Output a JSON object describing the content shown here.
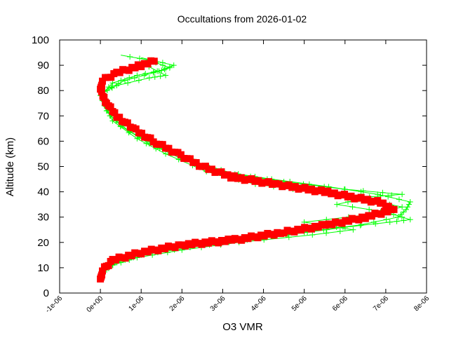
{
  "chart_data": {
    "type": "line",
    "title": "Occultations from 2026-01-02",
    "xlabel": "O3 VMR",
    "ylabel": "Altitude (km)",
    "xlim": [
      -1e-06,
      8e-06
    ],
    "ylim": [
      0,
      100
    ],
    "x_ticks": [
      "-1e-06",
      "0e+00",
      "1e-06",
      "2e-06",
      "3e-06",
      "4e-06",
      "5e-06",
      "6e-06",
      "7e-06",
      "8e-06"
    ],
    "y_ticks": [
      "0",
      "10",
      "20",
      "30",
      "40",
      "50",
      "60",
      "70",
      "80",
      "90",
      "100"
    ],
    "grid": false,
    "legend": "none",
    "colors": {
      "primary": "#ff0000",
      "secondary": "#00ff00"
    },
    "series": [
      {
        "color": "#00ff00",
        "marker": "plus",
        "points": [
          [
            5e-08,
            8
          ],
          [
            2e-07,
            11
          ],
          [
            6e-07,
            14
          ],
          [
            1.5e-06,
            17
          ],
          [
            3e-06,
            20
          ],
          [
            4.6e-06,
            23
          ],
          [
            6e-06,
            26
          ],
          [
            7.1e-06,
            28
          ],
          [
            7.6e-06,
            29
          ],
          [
            7e-06,
            32
          ],
          [
            5.8e-06,
            35
          ],
          [
            6.6e-06,
            38
          ],
          [
            7.4e-06,
            39
          ],
          [
            6e-06,
            41
          ],
          [
            4.5e-06,
            44
          ],
          [
            3.3e-06,
            47
          ],
          [
            2.3e-06,
            52
          ],
          [
            1.4e-06,
            58
          ],
          [
            7e-07,
            64
          ],
          [
            2.5e-07,
            70
          ],
          [
            5e-08,
            76
          ],
          [
            1e-07,
            80
          ],
          [
            6e-07,
            84
          ],
          [
            1.3e-06,
            87
          ],
          [
            1.7e-06,
            89
          ],
          [
            1.2e-06,
            92
          ],
          [
            5e-07,
            94
          ]
        ]
      },
      {
        "color": "#00ff00",
        "marker": "plus",
        "points": [
          [
            1e-07,
            9
          ],
          [
            4e-07,
            12
          ],
          [
            1e-06,
            15
          ],
          [
            2.2e-06,
            18
          ],
          [
            3.6e-06,
            21
          ],
          [
            5e-06,
            24
          ],
          [
            6.4e-06,
            27
          ],
          [
            7.3e-06,
            30
          ],
          [
            7.5e-06,
            33
          ],
          [
            7.6e-06,
            36
          ],
          [
            6.8e-06,
            39
          ],
          [
            5.6e-06,
            42
          ],
          [
            4.2e-06,
            45
          ],
          [
            3e-06,
            48
          ],
          [
            2e-06,
            53
          ],
          [
            1.2e-06,
            59
          ],
          [
            5e-07,
            66
          ],
          [
            1.5e-07,
            72
          ],
          [
            0.0,
            78
          ],
          [
            3e-07,
            83
          ],
          [
            9e-07,
            86
          ],
          [
            1.5e-06,
            88
          ],
          [
            1.8e-06,
            90
          ],
          [
            1e-06,
            93
          ]
        ]
      },
      {
        "color": "#00ff00",
        "marker": "plus",
        "points": [
          [
            0.0,
            7
          ],
          [
            3e-07,
            11
          ],
          [
            9e-07,
            14
          ],
          [
            2e-06,
            17
          ],
          [
            3.4e-06,
            20
          ],
          [
            5.2e-06,
            23
          ],
          [
            6.2e-06,
            25
          ],
          [
            5e-06,
            28
          ],
          [
            6.6e-06,
            31
          ],
          [
            7.4e-06,
            34
          ],
          [
            6.5e-06,
            37
          ],
          [
            5.2e-06,
            40
          ],
          [
            3.8e-06,
            43
          ],
          [
            2.6e-06,
            48
          ],
          [
            1.6e-06,
            55
          ],
          [
            9e-07,
            61
          ],
          [
            3e-07,
            68
          ],
          [
            1e-07,
            74
          ],
          [
            5e-08,
            79
          ],
          [
            4e-07,
            82
          ],
          [
            1.2e-06,
            85
          ],
          [
            1.6e-06,
            86
          ],
          [
            1e-06,
            91
          ]
        ]
      },
      {
        "color": "#ff0000",
        "marker": "square",
        "points": [
          [
            0.0,
            5
          ],
          [
            5e-08,
            9
          ],
          [
            3e-07,
            13
          ],
          [
            1e-06,
            16
          ],
          [
            2e-06,
            19
          ],
          [
            3.3e-06,
            21
          ],
          [
            4.5e-06,
            24
          ],
          [
            5.6e-06,
            27
          ],
          [
            6.5e-06,
            30
          ],
          [
            7.2e-06,
            33
          ],
          [
            6.8e-06,
            36
          ],
          [
            5.5e-06,
            40
          ],
          [
            4.3e-06,
            43
          ],
          [
            3.2e-06,
            46
          ],
          [
            2.5e-06,
            50
          ],
          [
            1.9e-06,
            55
          ],
          [
            1.3e-06,
            60
          ],
          [
            8e-07,
            65
          ],
          [
            4e-07,
            70
          ],
          [
            1.5e-07,
            75
          ],
          [
            0.0,
            80
          ],
          [
            5e-08,
            84
          ],
          [
            4e-07,
            87
          ],
          [
            1e-06,
            90
          ],
          [
            1.4e-06,
            92
          ]
        ]
      }
    ]
  }
}
